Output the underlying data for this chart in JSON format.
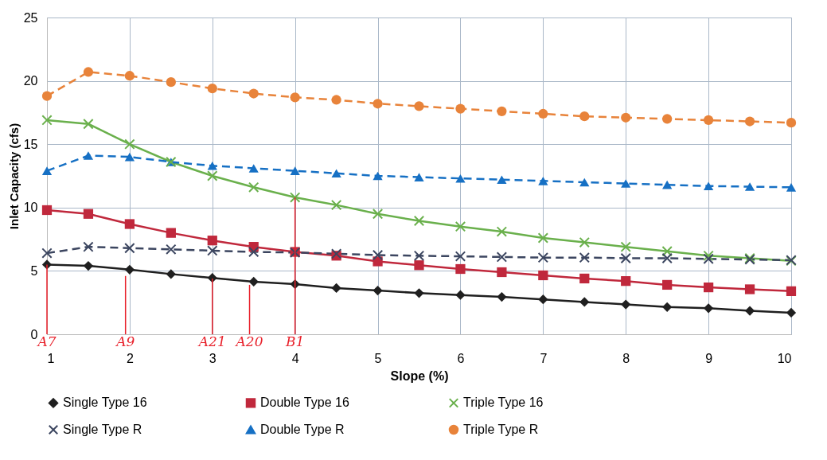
{
  "chart_data": {
    "type": "line",
    "xlabel": "Slope (%)",
    "ylabel": "Inlet Capacity (cfs)",
    "x": [
      1,
      1.5,
      2,
      2.5,
      3,
      3.5,
      4,
      4.5,
      5,
      5.5,
      6,
      6.5,
      7,
      7.5,
      8,
      8.5,
      9,
      9.5,
      10
    ],
    "series": [
      {
        "name": "Single Type 16",
        "color": "#1f1f1f",
        "marker": "diamond",
        "line_style": "solid",
        "values": [
          5.5,
          5.4,
          5.1,
          4.75,
          4.45,
          4.15,
          3.95,
          3.65,
          3.45,
          3.25,
          3.1,
          2.95,
          2.75,
          2.55,
          2.35,
          2.15,
          2.05,
          1.85,
          1.7
        ]
      },
      {
        "name": "Double Type 16",
        "color": "#c0283c",
        "marker": "square",
        "line_style": "solid",
        "values": [
          9.8,
          9.5,
          8.7,
          8.0,
          7.4,
          6.9,
          6.5,
          6.2,
          5.75,
          5.45,
          5.15,
          4.9,
          4.65,
          4.4,
          4.2,
          3.9,
          3.7,
          3.55,
          3.4
        ]
      },
      {
        "name": "Triple Type 16",
        "color": "#6ab04c",
        "marker": "cross",
        "line_style": "solid",
        "values": [
          16.9,
          16.6,
          15.0,
          13.6,
          12.5,
          11.6,
          10.8,
          10.2,
          9.5,
          8.95,
          8.5,
          8.1,
          7.6,
          7.25,
          6.9,
          6.55,
          6.2,
          6.0,
          5.8
        ]
      },
      {
        "name": "Single Type R",
        "color": "#3c4660",
        "marker": "cross",
        "line_style": "dashed",
        "values": [
          6.4,
          6.9,
          6.8,
          6.7,
          6.6,
          6.5,
          6.45,
          6.35,
          6.25,
          6.2,
          6.15,
          6.1,
          6.05,
          6.05,
          6.0,
          6.0,
          5.95,
          5.9,
          5.85
        ]
      },
      {
        "name": "Double Type R",
        "color": "#1670c4",
        "marker": "triangle",
        "line_style": "dashed",
        "values": [
          12.9,
          14.1,
          14.0,
          13.6,
          13.3,
          13.1,
          12.9,
          12.7,
          12.5,
          12.4,
          12.3,
          12.2,
          12.1,
          12.0,
          11.9,
          11.8,
          11.7,
          11.65,
          11.6
        ]
      },
      {
        "name": "Triple Type R",
        "color": "#e8833a",
        "marker": "circle",
        "line_style": "dashed",
        "values": [
          18.8,
          20.7,
          20.4,
          19.9,
          19.4,
          19.0,
          18.7,
          18.5,
          18.2,
          18.0,
          17.8,
          17.6,
          17.4,
          17.2,
          17.1,
          17.0,
          16.9,
          16.8,
          16.7
        ]
      }
    ],
    "xlim": [
      1,
      10
    ],
    "xticks": [
      1,
      2,
      3,
      4,
      5,
      6,
      7,
      8,
      9,
      10
    ],
    "ylim": [
      0,
      25
    ],
    "yticks": [
      0,
      5,
      10,
      15,
      20,
      25
    ],
    "grid": true,
    "legend": "bottom",
    "annotations": [
      {
        "text": "A7",
        "x": 1,
        "y": 5.5
      },
      {
        "text": "A9",
        "x": 1.95,
        "y": 4.6
      },
      {
        "text": "A21",
        "x": 3,
        "y": 4.4
      },
      {
        "text": "A20",
        "x": 3.45,
        "y": 3.9
      },
      {
        "text": "B1",
        "x": 4,
        "y": 10.8
      }
    ]
  }
}
